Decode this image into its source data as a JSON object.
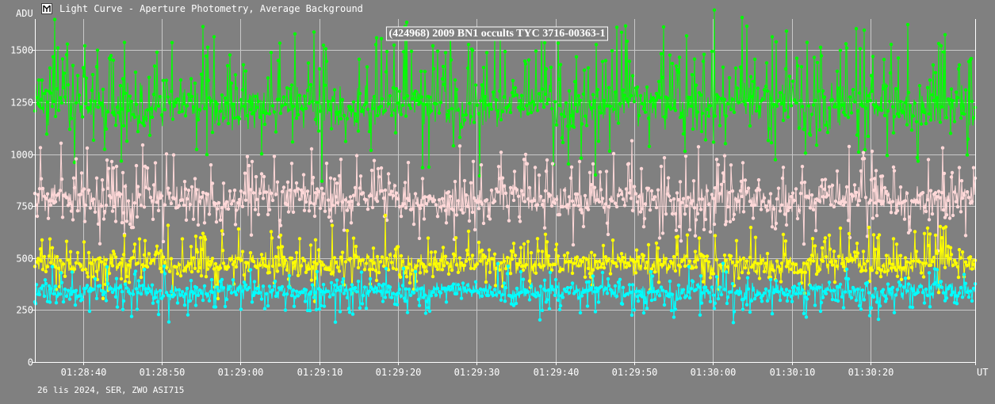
{
  "window": {
    "title": "Light Curve - Aperture Photometry, Average Background",
    "icon": "light-curve-app-icon"
  },
  "footer": {
    "text": "26 lis 2024, SER, ZWO ASI715"
  },
  "colors": {
    "background": "#808080",
    "grid": "#c8c8c8",
    "axis": "#ffffff",
    "target": "#00ff00",
    "comparison": "#ffd8d8",
    "reference_1": "#ffff00",
    "reference_2": "#00ffff"
  },
  "chart_data": {
    "type": "line",
    "title": "(424968) 2009 BN1 occults TYC 3716-00363-1",
    "ylabel": "ADU",
    "xlabel": "UT",
    "ylim": [
      0,
      1650
    ],
    "y_ticks": [
      0,
      250,
      500,
      750,
      1000,
      1250,
      1500
    ],
    "x_range": [
      "01:28:33.9",
      "01:30:33.3"
    ],
    "x_ticks": [
      "01:28:40",
      "01:28:50",
      "01:29:00",
      "01:29:10",
      "01:29:20",
      "01:29:30",
      "01:29:40",
      "01:29:50",
      "01:30:00",
      "01:30:10",
      "01:30:20"
    ],
    "grid": true,
    "markers": true,
    "series": [
      {
        "color": "#00ff00",
        "mean": 1230,
        "spread": 90,
        "spike": 250,
        "spike_up_prob": 0.22,
        "spike_down_prob": 0.08
      },
      {
        "color": "#ffd8d8",
        "mean": 780,
        "spread": 60,
        "spike": 150,
        "spike_up_prob": 0.18,
        "spike_down_prob": 0.12
      },
      {
        "color": "#ffff00",
        "mean": 470,
        "spread": 45,
        "spike": 110,
        "spike_up_prob": 0.15,
        "spike_down_prob": 0.08
      },
      {
        "color": "#00ffff",
        "mean": 340,
        "spread": 35,
        "spike": 90,
        "spike_up_prob": 0.06,
        "spike_down_prob": 0.14
      }
    ]
  }
}
